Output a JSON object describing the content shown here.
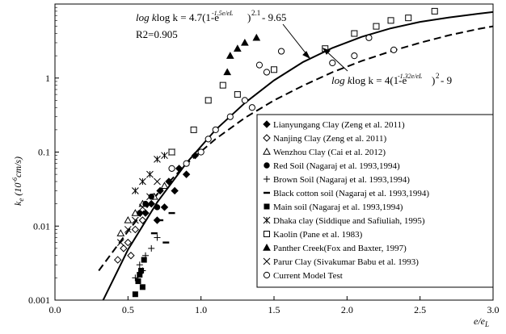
{
  "chart_data": {
    "type": "scatter",
    "title": "",
    "xlabel": "e/e_L",
    "ylabel": "k_e (10^-6 cm/s)",
    "xlim": [
      0,
      3
    ],
    "ylim": [
      0.001,
      10
    ],
    "log_y": true,
    "grid": false,
    "legend_position": "bottom-right",
    "x_ticks": [
      "0.0",
      "0.5",
      "1.0",
      "1.5",
      "2.0",
      "2.5",
      "3.0"
    ],
    "y_ticks": [
      "0.001",
      "0.01",
      "0.1",
      "1"
    ],
    "series": [
      {
        "name": "Lianyungang  Clay (Zeng et al. 2011)",
        "marker": "diamond-filled",
        "points": [
          [
            0.62,
            0.015
          ],
          [
            0.66,
            0.02
          ],
          [
            0.72,
            0.03
          ],
          [
            0.78,
            0.04
          ],
          [
            0.85,
            0.06
          ],
          [
            0.9,
            0.05
          ],
          [
            0.96,
            0.09
          ],
          [
            0.7,
            0.012
          ],
          [
            0.75,
            0.018
          ],
          [
            0.82,
            0.03
          ]
        ]
      },
      {
        "name": "Nanjing  Clay (Zeng et al. 2011)",
        "marker": "diamond-open",
        "points": [
          [
            0.43,
            0.0035
          ],
          [
            0.47,
            0.005
          ],
          [
            0.5,
            0.006
          ],
          [
            0.55,
            0.009
          ],
          [
            0.6,
            0.012
          ],
          [
            0.52,
            0.004
          ]
        ]
      },
      {
        "name": "Wenzhou Clay (Cai et al. 2012)",
        "marker": "triangle-open",
        "points": [
          [
            0.45,
            0.008
          ],
          [
            0.5,
            0.012
          ],
          [
            0.55,
            0.015
          ],
          [
            0.6,
            0.02
          ],
          [
            0.68,
            0.025
          ],
          [
            0.75,
            0.035
          ]
        ]
      },
      {
        "name": "Red Soil (Nagaraj et al. 1993,1994)",
        "marker": "circle-filled",
        "points": [
          [
            0.58,
            0.015
          ],
          [
            0.62,
            0.02
          ],
          [
            0.66,
            0.025
          ],
          [
            0.7,
            0.018
          ]
        ]
      },
      {
        "name": "Brown Soil (Nagaraj et al. 1993,1994)",
        "marker": "plus",
        "points": [
          [
            0.55,
            0.002
          ],
          [
            0.58,
            0.003
          ],
          [
            0.62,
            0.004
          ],
          [
            0.66,
            0.005
          ],
          [
            0.7,
            0.007
          ],
          [
            0.6,
            0.0025
          ]
        ]
      },
      {
        "name": "Black cotton soil (Nagaraj et al. 1993,1994)",
        "marker": "dash",
        "points": [
          [
            0.68,
            0.008
          ],
          [
            0.72,
            0.012
          ],
          [
            0.8,
            0.015
          ],
          [
            0.76,
            0.006
          ]
        ]
      },
      {
        "name": "Main soil (Nagaraj et al. 1993,1994)",
        "marker": "square-filled",
        "points": [
          [
            0.55,
            0.0012
          ],
          [
            0.57,
            0.0018
          ],
          [
            0.59,
            0.0025
          ],
          [
            0.61,
            0.0035
          ],
          [
            0.6,
            0.0015
          ],
          [
            0.58,
            0.0022
          ]
        ]
      },
      {
        "name": "Dhaka clay (Siddique and Safiuliah, 1995)",
        "marker": "asterisk",
        "points": [
          [
            0.55,
            0.03
          ],
          [
            0.6,
            0.04
          ],
          [
            0.65,
            0.05
          ],
          [
            0.7,
            0.08
          ],
          [
            0.75,
            0.09
          ],
          [
            0.8,
            0.1
          ]
        ]
      },
      {
        "name": "Kaolin (Pane et al. 1983)",
        "marker": "square-open",
        "points": [
          [
            0.8,
            0.1
          ],
          [
            0.95,
            0.2
          ],
          [
            1.05,
            0.5
          ],
          [
            1.15,
            0.8
          ],
          [
            1.25,
            0.6
          ],
          [
            1.5,
            1.3
          ],
          [
            1.85,
            2.5
          ],
          [
            2.05,
            4.0
          ],
          [
            2.2,
            5.0
          ],
          [
            2.3,
            6.0
          ],
          [
            2.42,
            6.5
          ],
          [
            2.6,
            8.0
          ]
        ]
      },
      {
        "name": "Panther Creek(Fox and Baxter, 1997)",
        "marker": "triangle-filled",
        "points": [
          [
            1.18,
            1.2
          ],
          [
            1.2,
            2.0
          ],
          [
            1.3,
            3.0
          ],
          [
            1.38,
            3.5
          ],
          [
            1.25,
            2.5
          ]
        ]
      },
      {
        "name": "Parur Clay (Sivakumar Babu et al. 1993)",
        "marker": "x",
        "points": [
          [
            0.45,
            0.006
          ],
          [
            0.5,
            0.009
          ],
          [
            0.55,
            0.012
          ],
          [
            0.6,
            0.018
          ],
          [
            0.65,
            0.025
          ],
          [
            0.7,
            0.04
          ]
        ]
      },
      {
        "name": "Current Model Test",
        "marker": "circle-open",
        "points": [
          [
            0.8,
            0.06
          ],
          [
            0.9,
            0.07
          ],
          [
            1.0,
            0.1
          ],
          [
            1.05,
            0.15
          ],
          [
            1.1,
            0.2
          ],
          [
            1.2,
            0.3
          ],
          [
            1.3,
            0.5
          ],
          [
            1.4,
            1.5
          ],
          [
            1.45,
            1.2
          ],
          [
            1.55,
            2.3
          ],
          [
            1.9,
            1.6
          ],
          [
            2.05,
            2.0
          ],
          [
            2.15,
            3.5
          ],
          [
            2.32,
            2.4
          ],
          [
            1.35,
            0.4
          ]
        ]
      }
    ],
    "curves": [
      {
        "label_text": "log k = 4.7(1-e^-1.5e/eL)^2.1 - 9.65",
        "style": "solid",
        "x": [
          0.33,
          0.5,
          0.7,
          0.9,
          1.1,
          1.3,
          1.5,
          1.7,
          1.9,
          2.1,
          2.3,
          2.5,
          2.7,
          2.9,
          3.0
        ],
        "y": [
          0.001,
          0.0048,
          0.021,
          0.071,
          0.2,
          0.46,
          0.93,
          1.65,
          2.55,
          3.6,
          4.7,
          5.75,
          6.6,
          7.4,
          7.8
        ]
      },
      {
        "label_text": "log k = 4(1-e^-1.32e/eL)^2 - 9",
        "style": "dashed",
        "x": [
          0.3,
          0.5,
          0.7,
          0.9,
          1.1,
          1.3,
          1.5,
          1.7,
          1.9,
          2.1,
          2.3,
          2.5,
          2.7,
          2.9,
          3.0
        ],
        "y": [
          0.0025,
          0.0085,
          0.027,
          0.069,
          0.15,
          0.29,
          0.5,
          0.79,
          1.2,
          1.7,
          2.3,
          3.0,
          3.8,
          4.6,
          5.0
        ]
      }
    ],
    "annotations": {
      "eq1_main": "log k = 4.7(1-e",
      "eq1_sup": "-1.5e/eL",
      "eq1_mid": ")",
      "eq1_pow": "2.1",
      "eq1_tail": " - 9.65",
      "r2": "R2=0.905",
      "eq2_main": "log k = 4(1-e",
      "eq2_sup": "-1.32e/eL",
      "eq2_mid": ")",
      "eq2_pow": "2",
      "eq2_tail": " - 9"
    }
  }
}
